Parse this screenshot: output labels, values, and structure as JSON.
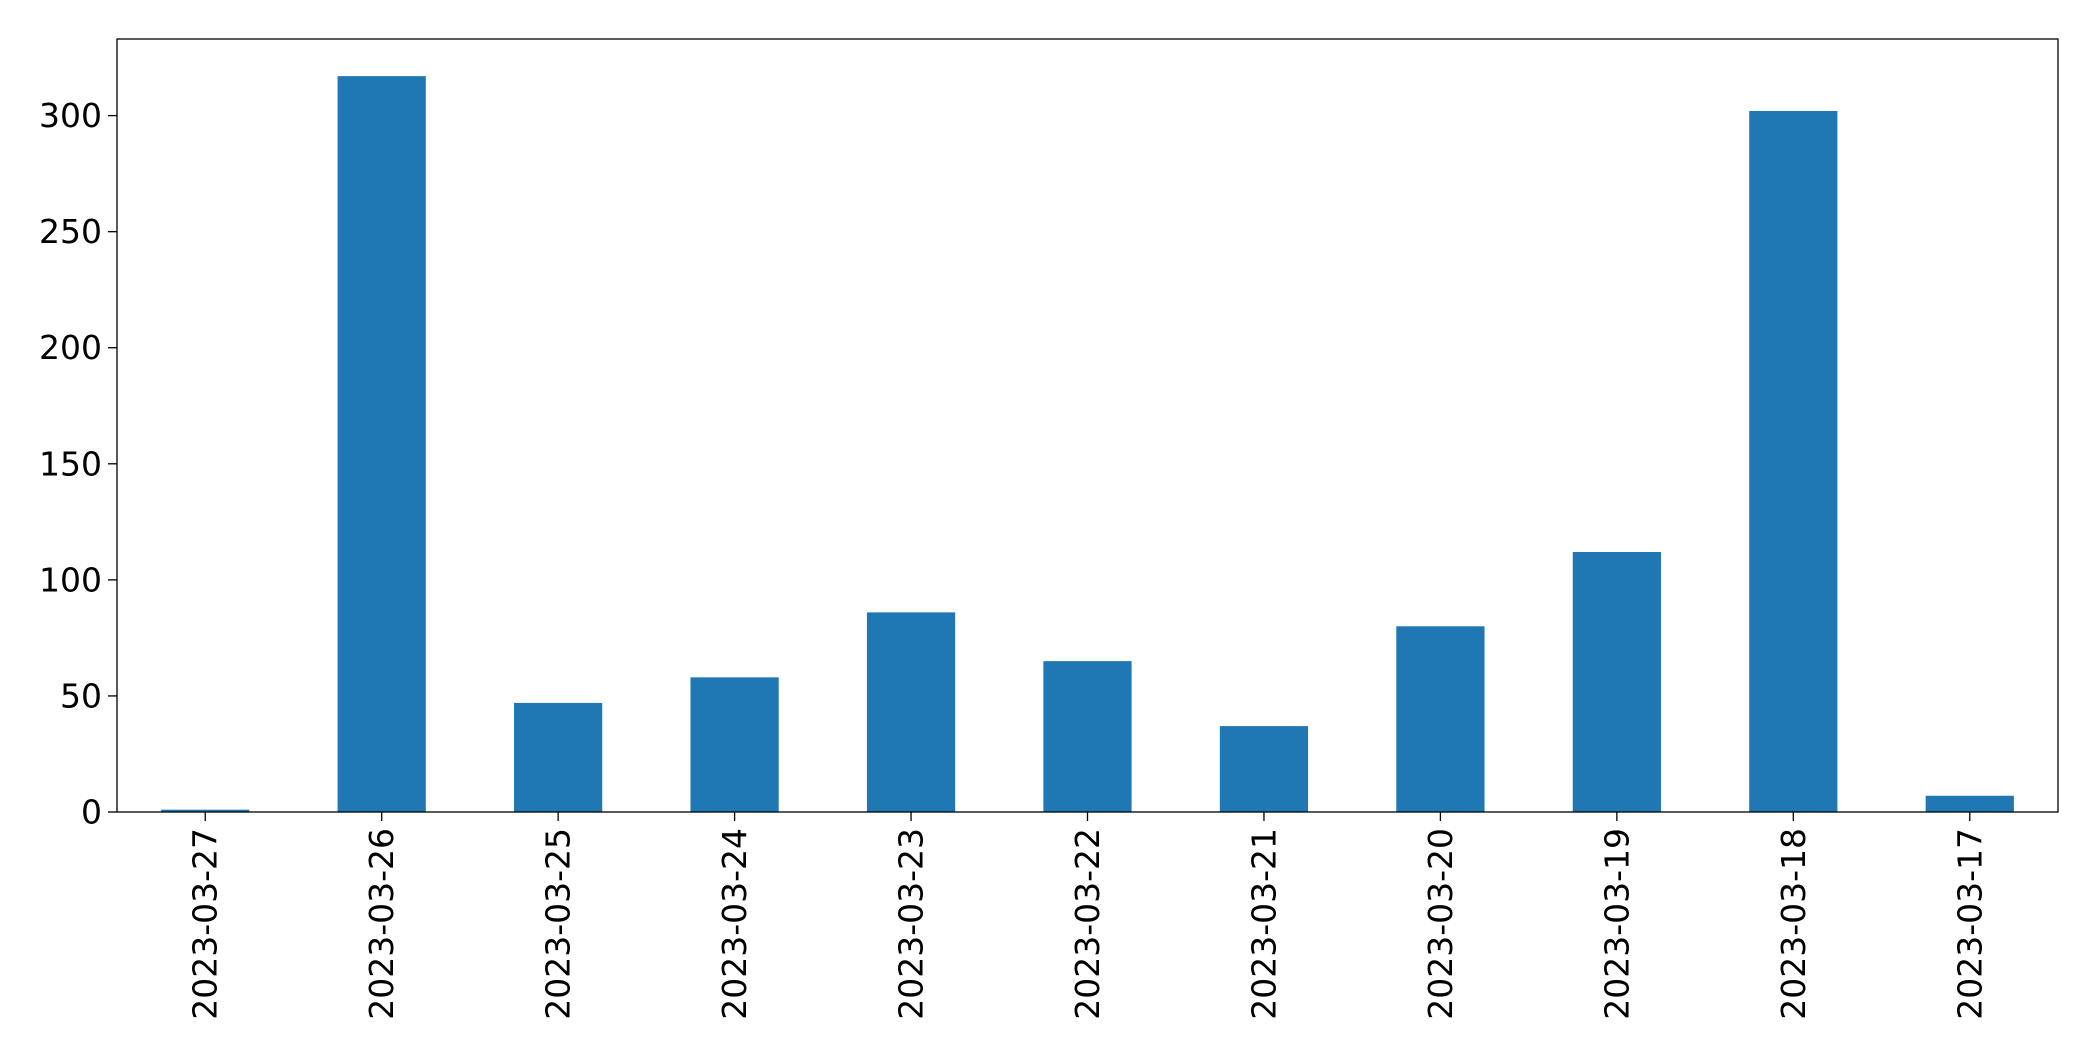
{
  "chart_data": {
    "type": "bar",
    "title": "",
    "xlabel": "",
    "ylabel": "",
    "categories": [
      "2023-03-27",
      "2023-03-26",
      "2023-03-25",
      "2023-03-24",
      "2023-03-23",
      "2023-03-22",
      "2023-03-21",
      "2023-03-20",
      "2023-03-19",
      "2023-03-18",
      "2023-03-17"
    ],
    "series": [
      {
        "values": [
          1,
          317,
          47,
          58,
          86,
          65,
          37,
          80,
          112,
          302,
          7
        ],
        "color": "#1f77b4"
      }
    ],
    "ylim": [
      0,
      333
    ],
    "yticks": [
      0,
      50,
      100,
      150,
      200,
      250,
      300
    ],
    "ytick_labels": [
      "0",
      "50",
      "100",
      "150",
      "200",
      "250",
      "300"
    ],
    "grid": false,
    "legend": "none"
  }
}
